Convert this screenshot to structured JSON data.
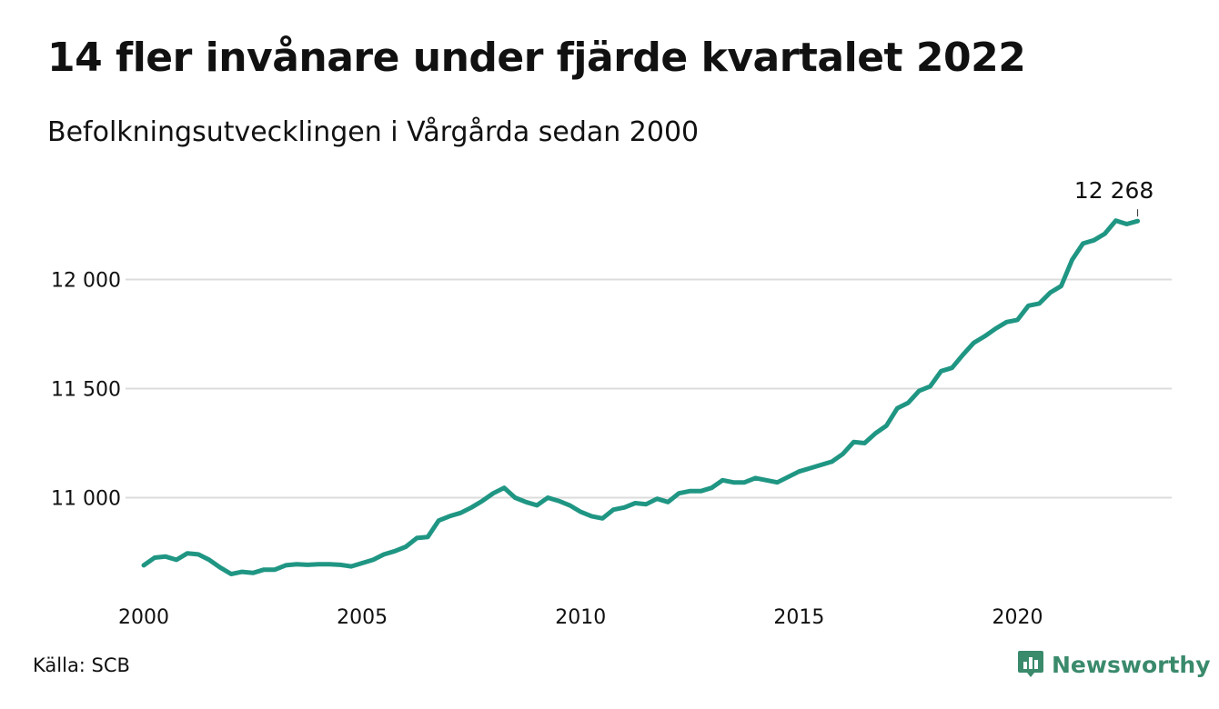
{
  "title": "14 fler invånare under fjärde kvartalet 2022",
  "subtitle": "Befolkningsutvecklingen i Vårgårda sedan 2000",
  "source": "Källa: SCB",
  "brand": {
    "name": "Newsworthy",
    "icon": "newsworthy-logo-icon",
    "color": "#3a8a6c"
  },
  "chart_data": {
    "type": "line",
    "title": "14 fler invånare under fjärde kvartalet 2022",
    "subtitle": "Befolkningsutvecklingen i Vårgårda sedan 2000",
    "xlabel": "",
    "ylabel": "",
    "x_ticks": [
      "2000",
      "2005",
      "2010",
      "2015",
      "2020"
    ],
    "y_ticks": [
      "11 000",
      "11 500",
      "12 000"
    ],
    "y_tick_values": [
      11000,
      11500,
      12000
    ],
    "xlim": [
      2000,
      2023
    ],
    "ylim": [
      10600,
      12350
    ],
    "grid": "horizontal",
    "line_color": "#1f9683",
    "end_label": "12 268",
    "series": [
      {
        "x": [
          2000.0,
          2000.25,
          2000.5,
          2000.75,
          2001.0,
          2001.25,
          2001.5,
          2001.75,
          2002.0,
          2002.25,
          2002.5,
          2002.75,
          2003.0,
          2003.25,
          2003.5,
          2003.75,
          2004.0,
          2004.25,
          2004.5,
          2004.75,
          2005.0,
          2005.25,
          2005.5,
          2005.75,
          2006.0,
          2006.25,
          2006.5,
          2006.75,
          2007.0,
          2007.25,
          2007.5,
          2007.75,
          2008.0,
          2008.25,
          2008.5,
          2008.75,
          2009.0,
          2009.25,
          2009.5,
          2009.75,
          2010.0,
          2010.25,
          2010.5,
          2010.75,
          2011.0,
          2011.25,
          2011.5,
          2011.75,
          2012.0,
          2012.25,
          2012.5,
          2012.75,
          2013.0,
          2013.25,
          2013.5,
          2013.75,
          2014.0,
          2014.25,
          2014.5,
          2014.75,
          2015.0,
          2015.25,
          2015.5,
          2015.75,
          2016.0,
          2016.25,
          2016.5,
          2016.75,
          2017.0,
          2017.25,
          2017.5,
          2017.75,
          2018.0,
          2018.25,
          2018.5,
          2018.75,
          2019.0,
          2019.25,
          2019.5,
          2019.75,
          2020.0,
          2020.25,
          2020.5,
          2020.75,
          2021.0,
          2021.25,
          2021.5,
          2021.75,
          2022.0,
          2022.25,
          2022.5,
          2022.75
        ],
        "values": [
          10690,
          10725,
          10730,
          10715,
          10745,
          10740,
          10715,
          10680,
          10650,
          10660,
          10655,
          10670,
          10670,
          10690,
          10695,
          10692,
          10695,
          10695,
          10692,
          10685,
          10700,
          10715,
          10740,
          10755,
          10775,
          10815,
          10820,
          10895,
          10915,
          10930,
          10955,
          10985,
          11020,
          11045,
          11000,
          10980,
          10965,
          11000,
          10985,
          10965,
          10935,
          10915,
          10905,
          10945,
          10955,
          10975,
          10970,
          10995,
          10980,
          11020,
          11030,
          11030,
          11045,
          11080,
          11070,
          11070,
          11090,
          11080,
          11070,
          11095,
          11120,
          11135,
          11150,
          11165,
          11200,
          11255,
          11250,
          11295,
          11330,
          11410,
          11435,
          11490,
          11510,
          11580,
          11595,
          11655,
          11710,
          11740,
          11775,
          11805,
          11815,
          11880,
          11890,
          11940,
          11970,
          12090,
          12165,
          12180,
          12210,
          12270,
          12254,
          12268
        ]
      }
    ]
  }
}
